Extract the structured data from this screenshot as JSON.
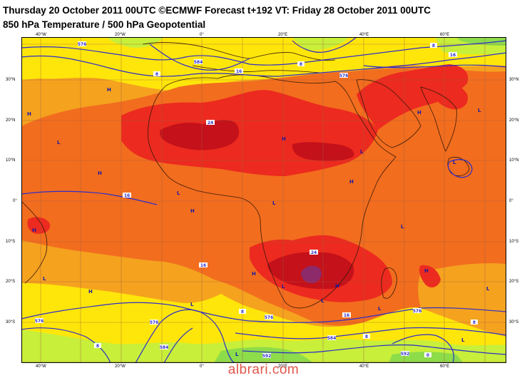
{
  "title_line1": "Thursday 20 October 2011 00UTC ©ECMWF Forecast t+192 VT: Friday 28 October 2011 00UTC",
  "title_line2": "850 hPa Temperature / 500 hPa Geopotential",
  "watermark": "albrari.com",
  "lon_ticks": [
    "40°W",
    "20°W",
    "0°",
    "20°E",
    "40°E",
    "60°E"
  ],
  "lat_ticks": [
    "30°N",
    "20°N",
    "10°N",
    "0°",
    "10°S",
    "20°S",
    "30°S"
  ],
  "contour_labels": [
    "576",
    "584",
    "8",
    "16",
    "576",
    "8",
    "8",
    "16",
    "24",
    "16",
    "24",
    "16",
    "8",
    "576",
    "576",
    "16",
    "584",
    "8",
    "576",
    "576",
    "584",
    "592",
    "592",
    "8",
    "0",
    "8"
  ],
  "pressure_markers": [
    "H",
    "H",
    "H",
    "L",
    "H",
    "L",
    "H",
    "L",
    "H",
    "L",
    "H",
    "L",
    "L",
    "H",
    "H",
    "L",
    "L",
    "L",
    "H",
    "L",
    "H",
    "L",
    "L",
    "L",
    "H",
    "L",
    "L"
  ],
  "colors": {
    "ocean_orange": "#f5a21f",
    "hot_orange": "#f26d1e",
    "red": "#ec2a1f",
    "dark_red": "#c4111a",
    "purple": "#8c2a6a",
    "yellow": "#ffe60a",
    "green_yellow": "#c8ef3a",
    "green": "#8ddc4a",
    "contour": "#2e2ec8",
    "coast": "#3a1a0a"
  }
}
